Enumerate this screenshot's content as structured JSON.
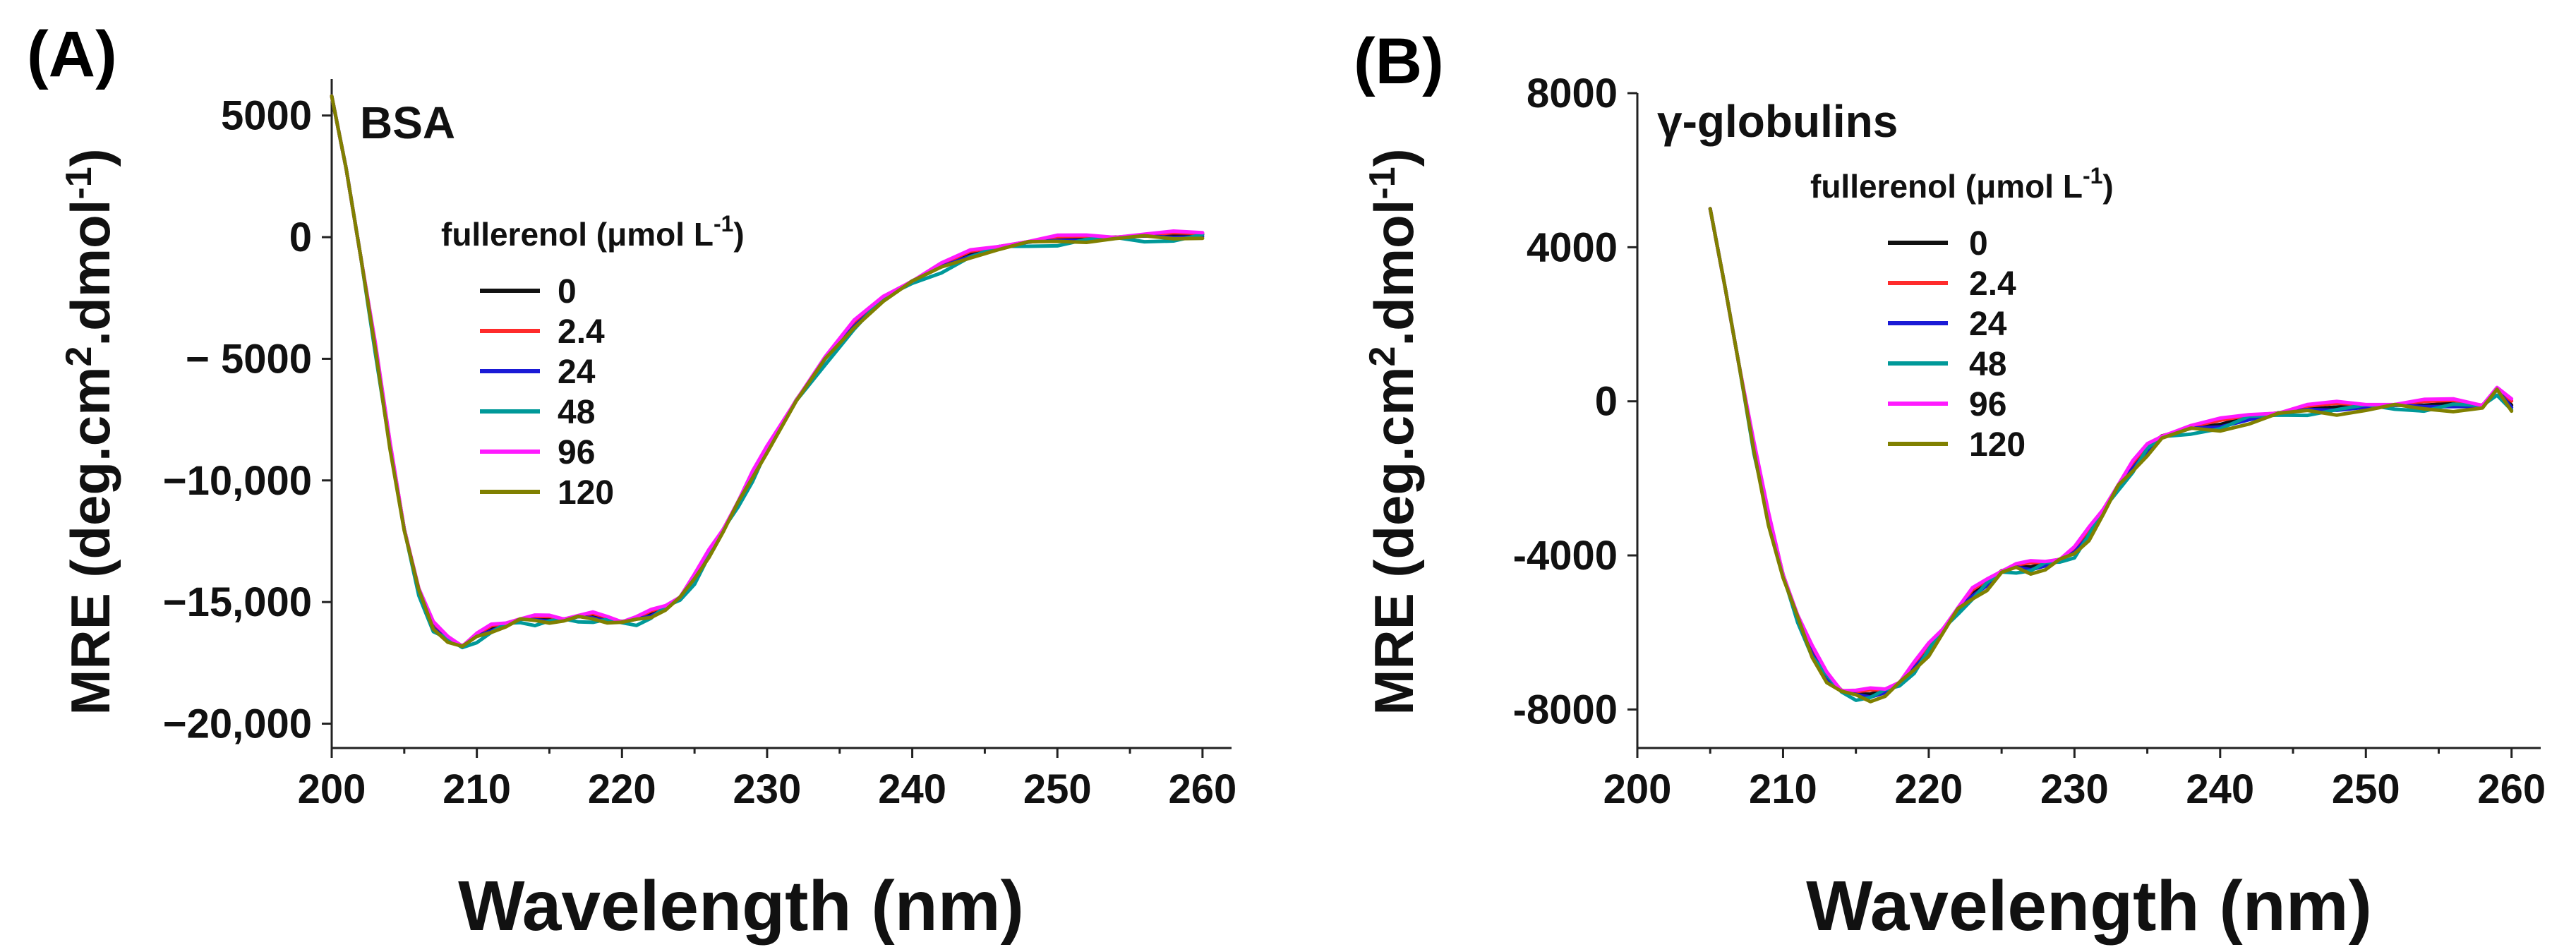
{
  "colors": {
    "0": "#111111",
    "2.4": "#ff2b2b",
    "24": "#1a1ad6",
    "48": "#009999",
    "96": "#ff1aff",
    "120": "#808000"
  },
  "chart_data": [
    {
      "panel": "(A)",
      "type": "line",
      "sample_label": "BSA",
      "xlabel": "Wavelength (nm)",
      "ylabel": "MRE (deg.cm2.dmol-1)",
      "ylabel_parts": {
        "main": "MRE (deg.cm",
        "sup1": "2",
        "mid": ".dmol",
        "sup2": "-1",
        "end": ")"
      },
      "xlim": [
        200,
        262
      ],
      "ylim": [
        -21000,
        6500
      ],
      "xticks": [
        200,
        210,
        220,
        230,
        240,
        250,
        260
      ],
      "yticks": [
        5000,
        0,
        -5000,
        -10000,
        -15000,
        -20000
      ],
      "ytick_labels": [
        "5000",
        "0",
        "− 5000",
        "−10,000",
        "−15,000",
        "−20,000"
      ],
      "legend_title": "fullerenol (μmol L-1)",
      "legend_title_parts": {
        "main": "fullerenol (μmol L",
        "sup": "-1",
        "end": ")"
      },
      "series": [
        {
          "name": "0"
        },
        {
          "name": "2.4"
        },
        {
          "name": "24"
        },
        {
          "name": "48"
        },
        {
          "name": "96"
        },
        {
          "name": "120"
        }
      ],
      "x": [
        200,
        201,
        202,
        203,
        204,
        205,
        206,
        207,
        208,
        209,
        210,
        211,
        212,
        213,
        214,
        215,
        216,
        217,
        218,
        219,
        220,
        221,
        222,
        223,
        224,
        225,
        226,
        227,
        228,
        229,
        230,
        232,
        234,
        236,
        238,
        240,
        242,
        244,
        246,
        248,
        250,
        252,
        254,
        256,
        258,
        260
      ],
      "base": [
        5800,
        2800,
        -800,
        -4500,
        -8500,
        -12000,
        -14500,
        -16000,
        -16500,
        -16800,
        -16400,
        -16100,
        -15900,
        -15700,
        -15700,
        -15700,
        -15700,
        -15600,
        -15600,
        -15700,
        -15800,
        -15700,
        -15500,
        -15200,
        -14800,
        -14000,
        -13000,
        -12000,
        -10900,
        -9800,
        -8700,
        -6700,
        -5000,
        -3600,
        -2500,
        -1800,
        -1200,
        -700,
        -400,
        -200,
        -100,
        -50,
        0,
        50,
        50,
        100
      ],
      "offsets": [
        0,
        120,
        -80,
        -250,
        180,
        -150
      ]
    },
    {
      "panel": "(B)",
      "type": "line",
      "sample_label": "γ-globulins",
      "xlabel": "Wavelength (nm)",
      "ylabel": "MRE (deg.cm2.dmol-1)",
      "ylabel_parts": {
        "main": "MRE (deg.cm",
        "sup1": "2",
        "mid": ".dmol",
        "sup2": "-1",
        "end": ")"
      },
      "xlim": [
        200,
        262
      ],
      "ylim": [
        -9000,
        8000
      ],
      "xticks": [
        200,
        210,
        220,
        230,
        240,
        250,
        260
      ],
      "yticks": [
        8000,
        4000,
        0,
        -4000,
        -8000
      ],
      "ytick_labels": [
        "8000",
        "4000",
        "0",
        "-4000",
        "-8000"
      ],
      "legend_title": "fullerenol (μmol L-1)",
      "legend_title_parts": {
        "main": "fullerenol (μmol L",
        "sup": "-1",
        "end": ")"
      },
      "series": [
        {
          "name": "0"
        },
        {
          "name": "2.4"
        },
        {
          "name": "24"
        },
        {
          "name": "48"
        },
        {
          "name": "96"
        },
        {
          "name": "120"
        }
      ],
      "x": [
        205,
        206,
        207,
        208,
        209,
        210,
        211,
        212,
        213,
        214,
        215,
        216,
        217,
        218,
        219,
        220,
        221,
        222,
        223,
        224,
        225,
        226,
        227,
        228,
        229,
        230,
        231,
        232,
        233,
        234,
        235,
        236,
        238,
        240,
        242,
        244,
        246,
        248,
        250,
        252,
        254,
        256,
        258,
        259,
        260
      ],
      "base": [
        5000,
        3000,
        900,
        -1200,
        -3000,
        -4500,
        -5600,
        -6500,
        -7100,
        -7500,
        -7600,
        -7600,
        -7500,
        -7300,
        -6900,
        -6400,
        -5900,
        -5400,
        -5000,
        -4700,
        -4400,
        -4300,
        -4300,
        -4200,
        -4100,
        -3900,
        -3400,
        -2800,
        -2200,
        -1700,
        -1200,
        -900,
        -700,
        -600,
        -400,
        -300,
        -200,
        -150,
        -100,
        -100,
        -100,
        -50,
        -100,
        300,
        -100
      ],
      "offsets": [
        0,
        100,
        -80,
        -150,
        150,
        -200
      ]
    }
  ]
}
